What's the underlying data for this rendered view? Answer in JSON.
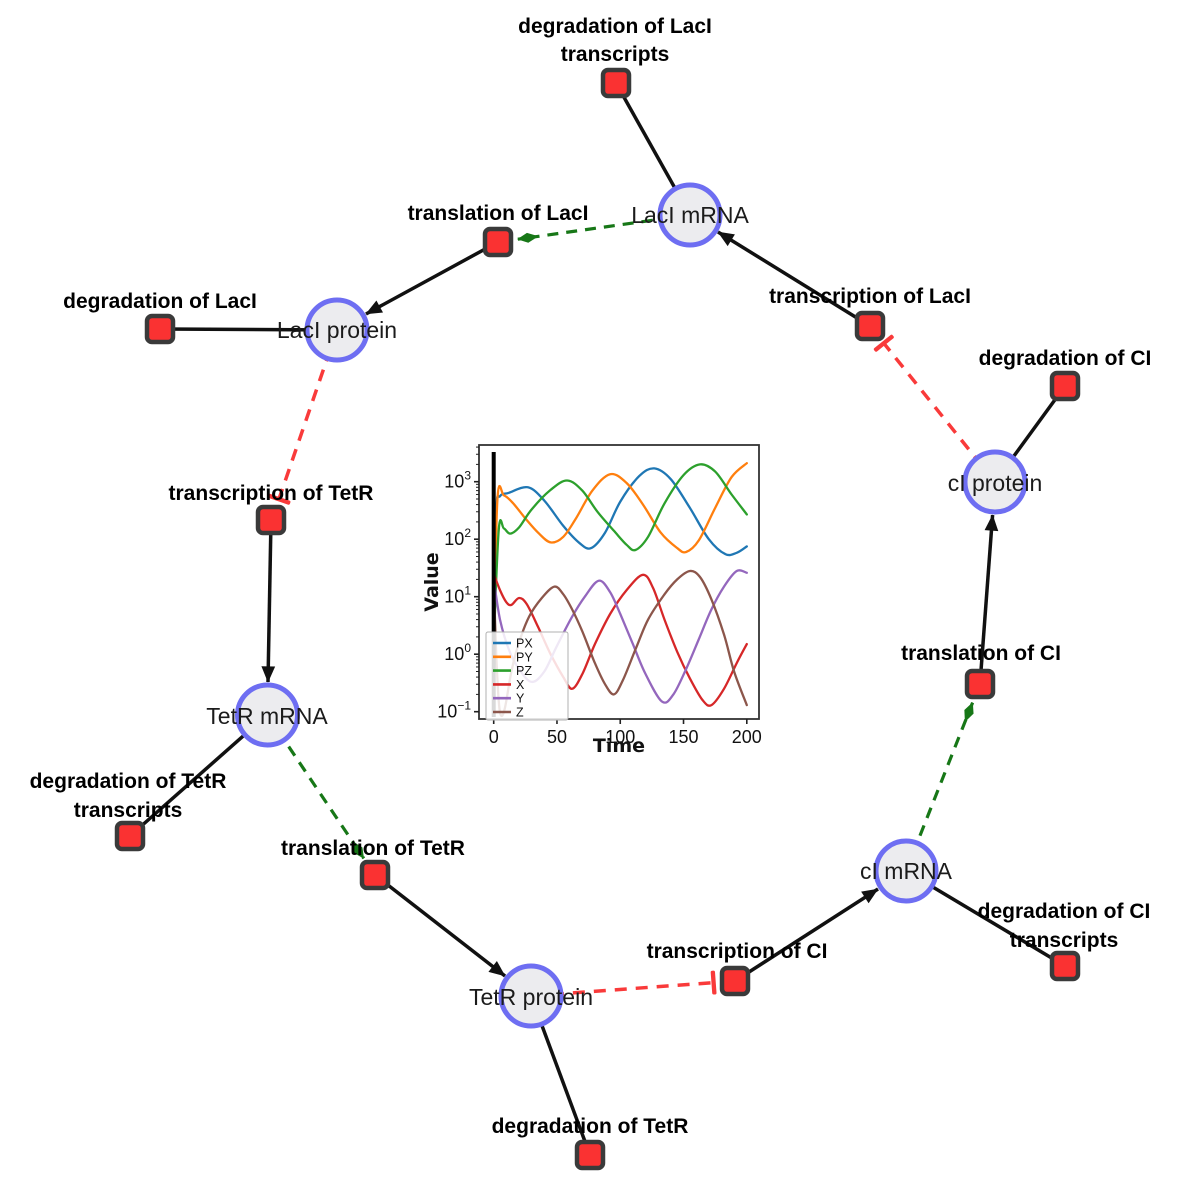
{
  "network": {
    "species": [
      {
        "label": "LacI mRNA"
      },
      {
        "label": "LacI protein"
      },
      {
        "label": "TetR mRNA"
      },
      {
        "label": "TetR protein"
      },
      {
        "label": "cI mRNA"
      },
      {
        "label": "cI protein"
      }
    ],
    "reactions": [
      {
        "lines": [
          "degradation of LacI",
          "transcripts"
        ]
      },
      {
        "lines": [
          "translation of LacI"
        ]
      },
      {
        "lines": [
          "degradation of LacI"
        ]
      },
      {
        "lines": [
          "transcription of LacI"
        ]
      },
      {
        "lines": [
          "degradation of CI"
        ]
      },
      {
        "lines": [
          "transcription of TetR"
        ]
      },
      {
        "lines": [
          "degradation of TetR",
          "transcripts"
        ]
      },
      {
        "lines": [
          "translation of TetR"
        ]
      },
      {
        "lines": [
          "degradation of TetR"
        ]
      },
      {
        "lines": [
          "transcription of CI"
        ]
      },
      {
        "lines": [
          "degradation of CI",
          "transcripts"
        ]
      },
      {
        "lines": [
          "translation of CI"
        ]
      }
    ],
    "colors": {
      "species_fill": "#ececef",
      "species_stroke": "#6e6ef2",
      "reaction_fill": "#fa3232",
      "reaction_stroke": "#3a3a3a",
      "edge_solid": "#111111",
      "edge_modifier_green": "#177717",
      "edge_inhibition_red": "#f93a3a"
    }
  },
  "chart_data": {
    "type": "line",
    "title": "",
    "xlabel": "Time",
    "ylabel": "Value",
    "yscale": "log",
    "xlim": [
      -11.6,
      209.7
    ],
    "ylim_log_exponents": [
      -1.12,
      3.64
    ],
    "xticks": [
      0,
      50,
      100,
      150,
      200
    ],
    "ytick_exponents": [
      3,
      2,
      1,
      0,
      -1
    ],
    "grid": false,
    "legend_position": "lower left",
    "vline_x": 0,
    "series": [
      {
        "name": "PX",
        "color": "#1f77b4",
        "points": [
          [
            0,
            1.5
          ],
          [
            2,
            300
          ],
          [
            5,
            560
          ],
          [
            12,
            640
          ],
          [
            27,
            800
          ],
          [
            40,
            470
          ],
          [
            55,
            170
          ],
          [
            68,
            85
          ],
          [
            77,
            70
          ],
          [
            88,
            130
          ],
          [
            100,
            450
          ],
          [
            115,
            1250
          ],
          [
            127,
            1700
          ],
          [
            140,
            1100
          ],
          [
            155,
            350
          ],
          [
            170,
            100
          ],
          [
            183,
            55
          ],
          [
            192,
            58
          ],
          [
            200,
            75
          ]
        ]
      },
      {
        "name": "PY",
        "color": "#ff7f0e",
        "points": [
          [
            0,
            1.5
          ],
          [
            3,
            520
          ],
          [
            8,
            580
          ],
          [
            15,
            430
          ],
          [
            25,
            230
          ],
          [
            35,
            130
          ],
          [
            45,
            88
          ],
          [
            55,
            110
          ],
          [
            65,
            230
          ],
          [
            78,
            700
          ],
          [
            92,
            1350
          ],
          [
            105,
            950
          ],
          [
            118,
            400
          ],
          [
            132,
            130
          ],
          [
            145,
            70
          ],
          [
            152,
            60
          ],
          [
            162,
            95
          ],
          [
            175,
            350
          ],
          [
            188,
            1200
          ],
          [
            200,
            2100
          ]
        ]
      },
      {
        "name": "PZ",
        "color": "#2ca02c",
        "points": [
          [
            0,
            1.5
          ],
          [
            4,
            150
          ],
          [
            8,
            155
          ],
          [
            13,
            125
          ],
          [
            20,
            160
          ],
          [
            30,
            330
          ],
          [
            45,
            720
          ],
          [
            58,
            1050
          ],
          [
            70,
            700
          ],
          [
            82,
            300
          ],
          [
            95,
            140
          ],
          [
            105,
            80
          ],
          [
            112,
            65
          ],
          [
            122,
            110
          ],
          [
            135,
            420
          ],
          [
            150,
            1300
          ],
          [
            163,
            2000
          ],
          [
            175,
            1500
          ],
          [
            188,
            600
          ],
          [
            200,
            270
          ]
        ]
      },
      {
        "name": "X",
        "color": "#d62728",
        "points": [
          [
            0,
            25
          ],
          [
            5,
            13
          ],
          [
            10,
            8
          ],
          [
            14,
            7.2
          ],
          [
            20,
            9.5
          ],
          [
            26,
            7.5
          ],
          [
            35,
            3
          ],
          [
            45,
            1
          ],
          [
            55,
            0.4
          ],
          [
            62,
            0.25
          ],
          [
            70,
            0.45
          ],
          [
            80,
            1.5
          ],
          [
            92,
            5
          ],
          [
            105,
            13
          ],
          [
            118,
            24
          ],
          [
            126,
            14
          ],
          [
            135,
            4
          ],
          [
            145,
            1.1
          ],
          [
            155,
            0.38
          ],
          [
            165,
            0.16
          ],
          [
            172,
            0.13
          ],
          [
            182,
            0.25
          ],
          [
            192,
            0.7
          ],
          [
            200,
            1.5
          ]
        ]
      },
      {
        "name": "Y",
        "color": "#9467bd",
        "points": [
          [
            0,
            20
          ],
          [
            5,
            4
          ],
          [
            12,
            1.2
          ],
          [
            20,
            0.55
          ],
          [
            30,
            0.33
          ],
          [
            40,
            0.5
          ],
          [
            50,
            1.4
          ],
          [
            62,
            4.5
          ],
          [
            72,
            10
          ],
          [
            83,
            19
          ],
          [
            92,
            12
          ],
          [
            100,
            5
          ],
          [
            110,
            1.5
          ],
          [
            120,
            0.45
          ],
          [
            133,
            0.15
          ],
          [
            142,
            0.2
          ],
          [
            152,
            0.55
          ],
          [
            162,
            1.8
          ],
          [
            172,
            6
          ],
          [
            182,
            15
          ],
          [
            192,
            28
          ],
          [
            200,
            26
          ]
        ]
      },
      {
        "name": "Z",
        "color": "#8c564b",
        "points": [
          [
            0,
            20
          ],
          [
            2,
            1
          ],
          [
            4,
            0.15
          ],
          [
            6,
            0.085
          ],
          [
            9,
            0.12
          ],
          [
            14,
            0.5
          ],
          [
            20,
            1.6
          ],
          [
            28,
            4.5
          ],
          [
            38,
            9.5
          ],
          [
            48,
            15
          ],
          [
            55,
            11
          ],
          [
            62,
            6
          ],
          [
            70,
            2.5
          ],
          [
            80,
            0.7
          ],
          [
            88,
            0.3
          ],
          [
            95,
            0.2
          ],
          [
            102,
            0.35
          ],
          [
            112,
            1.2
          ],
          [
            122,
            4
          ],
          [
            135,
            11
          ],
          [
            145,
            20
          ],
          [
            155,
            28
          ],
          [
            163,
            22
          ],
          [
            172,
            9
          ],
          [
            182,
            2.2
          ],
          [
            190,
            0.5
          ],
          [
            200,
            0.13
          ]
        ]
      }
    ]
  }
}
